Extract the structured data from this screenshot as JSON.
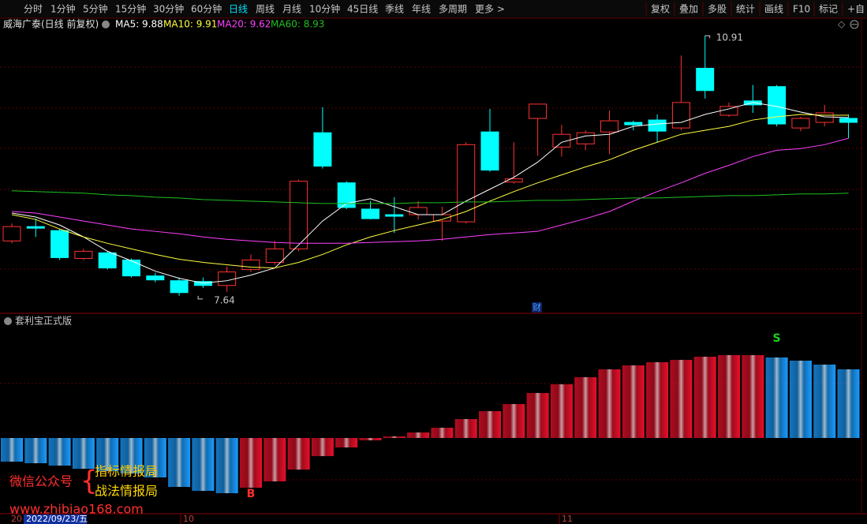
{
  "toolbar": {
    "periods": [
      "分时",
      "1分钟",
      "5分钟",
      "15分钟",
      "30分钟",
      "60分钟",
      "日线",
      "周线",
      "月线",
      "10分钟",
      "45日线",
      "季线",
      "年线",
      "多周期",
      "更多 >"
    ],
    "active_period": "日线",
    "tools": [
      "复权",
      "叠加",
      "多股",
      "统计",
      "画线",
      "F10",
      "标记",
      "+自"
    ]
  },
  "chart_data": [
    {
      "type": "candlestick",
      "title": "威海广泰(日线 前复权)",
      "up_color": "#ff3232",
      "down_color": "#00ffff",
      "ylim": [
        7.44,
        11.16
      ],
      "marker": "财",
      "open": [
        8.33,
        8.51,
        8.46,
        8.11,
        8.18,
        8.09,
        7.89,
        7.83,
        7.82,
        7.77,
        7.97,
        8.06,
        8.23,
        9.69,
        9.06,
        8.73,
        8.66,
        8.66,
        8.58,
        8.57,
        9.7,
        9.07,
        9.87,
        9.51,
        9.55,
        9.7,
        9.82,
        9.85,
        9.75,
        10.5,
        9.91,
        10.09,
        10.27,
        9.75,
        9.82,
        9.87
      ],
      "high": [
        8.55,
        8.61,
        8.48,
        8.23,
        8.2,
        8.11,
        7.93,
        7.87,
        7.87,
        8.01,
        8.16,
        8.33,
        9.1,
        10.01,
        9.08,
        8.83,
        8.88,
        8.83,
        8.76,
        9.57,
        9.99,
        9.57,
        10.05,
        9.79,
        9.72,
        9.97,
        9.84,
        9.92,
        10.66,
        10.91,
        10.07,
        10.29,
        10.29,
        9.89,
        10.04,
        9.92
      ],
      "low": [
        8.3,
        8.38,
        8.09,
        8.09,
        7.97,
        7.87,
        7.81,
        7.64,
        7.74,
        7.69,
        7.94,
        8.03,
        8.2,
        9.24,
        8.73,
        8.6,
        8.43,
        8.6,
        8.33,
        8.55,
        9.2,
        9.05,
        9.4,
        9.39,
        9.47,
        9.42,
        9.72,
        9.57,
        9.72,
        10.12,
        9.89,
        9.94,
        9.77,
        9.71,
        9.77,
        9.62
      ],
      "close": [
        8.51,
        8.49,
        8.12,
        8.2,
        7.99,
        7.89,
        7.84,
        7.68,
        7.77,
        7.94,
        8.09,
        8.23,
        9.08,
        9.27,
        8.75,
        8.61,
        8.64,
        8.75,
        8.66,
        9.54,
        9.22,
        9.11,
        10.05,
        9.67,
        9.69,
        9.84,
        9.79,
        9.71,
        10.07,
        10.22,
        10.02,
        10.04,
        9.8,
        9.87,
        9.94,
        9.82
      ],
      "series": [
        {
          "name": "MA5",
          "legend_text": "MA5: 9.88",
          "color": "#ffffff",
          "values": [
            8.68,
            8.63,
            8.53,
            8.38,
            8.2,
            8.08,
            7.95,
            7.86,
            7.8,
            7.83,
            7.9,
            7.99,
            8.28,
            8.58,
            8.8,
            8.86,
            8.76,
            8.66,
            8.66,
            8.83,
            8.98,
            9.13,
            9.32,
            9.57,
            9.65,
            9.67,
            9.77,
            9.8,
            9.82,
            9.92,
            9.99,
            10.07,
            10.02,
            9.95,
            9.89,
            9.88
          ]
        },
        {
          "name": "MA10",
          "legend_text": "MA10: 9.91",
          "color": "#ffff40",
          "values": [
            8.66,
            8.6,
            8.48,
            8.38,
            8.3,
            8.23,
            8.16,
            8.1,
            8.06,
            8.03,
            8.0,
            7.99,
            8.06,
            8.16,
            8.28,
            8.38,
            8.46,
            8.53,
            8.6,
            8.7,
            8.83,
            8.95,
            9.06,
            9.16,
            9.26,
            9.35,
            9.47,
            9.57,
            9.67,
            9.72,
            9.77,
            9.85,
            9.89,
            9.92,
            9.91,
            9.91
          ]
        },
        {
          "name": "MA20",
          "legend_text": "MA20: 9.62",
          "color": "#ff40ff",
          "values": [
            8.7,
            8.68,
            8.63,
            8.58,
            8.53,
            8.48,
            8.45,
            8.42,
            8.38,
            8.35,
            8.33,
            8.31,
            8.3,
            8.3,
            8.3,
            8.31,
            8.32,
            8.33,
            8.35,
            8.38,
            8.41,
            8.43,
            8.45,
            8.53,
            8.61,
            8.7,
            8.83,
            8.95,
            9.06,
            9.18,
            9.28,
            9.39,
            9.47,
            9.49,
            9.54,
            9.62
          ]
        },
        {
          "name": "MA60",
          "legend_text": "MA60: 8.93",
          "color": "#20c020",
          "values": [
            8.96,
            8.95,
            8.94,
            8.93,
            8.91,
            8.9,
            8.88,
            8.87,
            8.85,
            8.84,
            8.83,
            8.82,
            8.81,
            8.8,
            8.8,
            8.8,
            8.8,
            8.81,
            8.81,
            8.82,
            8.82,
            8.83,
            8.84,
            8.84,
            8.85,
            8.86,
            8.87,
            8.87,
            8.88,
            8.89,
            8.9,
            8.9,
            8.91,
            8.92,
            8.92,
            8.93
          ]
        }
      ]
    },
    {
      "type": "bar",
      "title": "套利宝正式版",
      "ylim": [
        -95,
        145
      ],
      "values": [
        -30,
        -32,
        -35,
        -39,
        -42,
        -45,
        -50,
        -62,
        -67,
        -70,
        -63,
        -55,
        -40,
        -23,
        -12,
        -3,
        2,
        7,
        13,
        24,
        34,
        43,
        57,
        68,
        77,
        87,
        92,
        96,
        99,
        103,
        105,
        105,
        102,
        98,
        93,
        87
      ],
      "colors": [
        "#1a9cff",
        "#1a9cff",
        "#1a9cff",
        "#1a9cff",
        "#1a9cff",
        "#1a9cff",
        "#1a9cff",
        "#1a9cff",
        "#1a9cff",
        "#1a9cff",
        "#e8102a",
        "#e8102a",
        "#e8102a",
        "#e8102a",
        "#e8102a",
        "#e8102a",
        "#e8102a",
        "#e8102a",
        "#e8102a",
        "#e8102a",
        "#e8102a",
        "#e8102a",
        "#e8102a",
        "#e8102a",
        "#e8102a",
        "#e8102a",
        "#e8102a",
        "#e8102a",
        "#e8102a",
        "#e8102a",
        "#e8102a",
        "#e8102a",
        "#1a9cff",
        "#1a9cff",
        "#1a9cff",
        "#1a9cff"
      ],
      "signals": [
        null,
        null,
        null,
        null,
        null,
        null,
        null,
        null,
        null,
        null,
        "B",
        null,
        null,
        null,
        null,
        null,
        null,
        null,
        null,
        null,
        null,
        null,
        null,
        null,
        null,
        null,
        null,
        null,
        null,
        null,
        null,
        null,
        "S",
        null,
        null,
        null
      ]
    }
  ],
  "watermark": {
    "label": "微信公众号",
    "lines": [
      "指标情报局",
      "战法情报局"
    ],
    "url": "www.zhibiao168.com"
  },
  "footer": {
    "labels": [
      "20",
      "2022/09/23/五",
      "10",
      "11"
    ]
  }
}
